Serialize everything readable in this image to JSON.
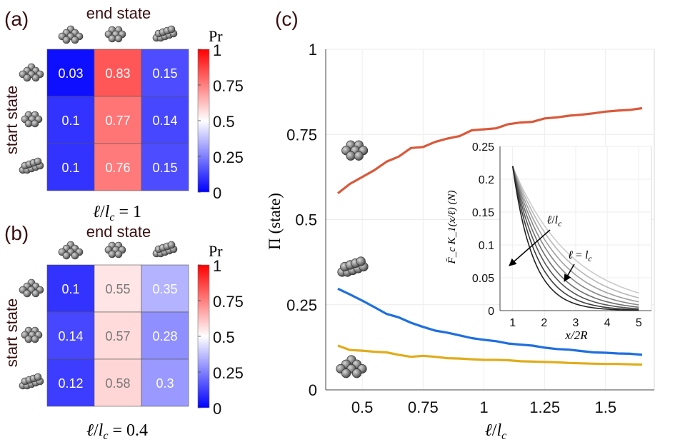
{
  "panels": {
    "a": {
      "label": "(a)",
      "title": "end state",
      "ylabel": "start state",
      "colorbar_label": "Pr",
      "colorbar_ticks": [
        "1",
        "0.75",
        "0.5",
        "0.25",
        "0"
      ],
      "caption": "ℓ/l_c = 1",
      "caption_parts": {
        "ell": "ℓ",
        "slash": "/",
        "l": "l",
        "sub": "c",
        "eq": " = ",
        "val": "1"
      }
    },
    "b": {
      "label": "(b)",
      "title": "end state",
      "ylabel": "start state",
      "colorbar_label": "Pr",
      "colorbar_ticks": [
        "1",
        "0.75",
        "0.5",
        "0.25",
        "0"
      ],
      "caption": "ℓ/l_c = 0.4",
      "caption_parts": {
        "ell": "ℓ",
        "slash": "/",
        "l": "l",
        "sub": "c",
        "eq": " = ",
        "val": "0.4"
      }
    },
    "c": {
      "label": "(c)"
    }
  },
  "icons": [
    "compact-cluster-icon",
    "branched-cluster-icon",
    "linear-chain-icon"
  ],
  "colors": {
    "red": "#ff0000",
    "white": "#ffffff",
    "blue": "#0000ff",
    "series_orange": "#d95a3b",
    "series_blue": "#1f6fdf",
    "series_yellow": "#e0ac1a"
  },
  "chart_data": [
    {
      "type": "heatmap",
      "panel": "a",
      "title": "end state",
      "ylabel": "start state",
      "xlabel": "ℓ/l_c = 1",
      "colorbar": {
        "label": "Pr",
        "range": [
          0,
          1
        ]
      },
      "rows": [
        "compact",
        "branched",
        "chain"
      ],
      "cols": [
        "compact",
        "branched",
        "chain"
      ],
      "values": [
        [
          0.03,
          0.83,
          0.15
        ],
        [
          0.1,
          0.77,
          0.14
        ],
        [
          0.1,
          0.76,
          0.15
        ]
      ],
      "labels": [
        [
          "0.03",
          "0.83",
          "0.15"
        ],
        [
          "0.1",
          "0.77",
          "0.14"
        ],
        [
          "0.1",
          "0.76",
          "0.15"
        ]
      ]
    },
    {
      "type": "heatmap",
      "panel": "b",
      "title": "end state",
      "ylabel": "start state",
      "xlabel": "ℓ/l_c = 0.4",
      "colorbar": {
        "label": "Pr",
        "range": [
          0,
          1
        ]
      },
      "rows": [
        "compact",
        "branched",
        "chain"
      ],
      "cols": [
        "compact",
        "branched",
        "chain"
      ],
      "values": [
        [
          0.1,
          0.55,
          0.35
        ],
        [
          0.14,
          0.57,
          0.28
        ],
        [
          0.12,
          0.58,
          0.3
        ]
      ],
      "labels": [
        [
          "0.1",
          "0.55",
          "0.35"
        ],
        [
          "0.14",
          "0.57",
          "0.28"
        ],
        [
          "0.12",
          "0.58",
          "0.3"
        ]
      ]
    },
    {
      "type": "line",
      "panel": "c",
      "xlabel": "ℓ/l_c",
      "ylabel": "Π (state)",
      "xlim": [
        0.35,
        1.7
      ],
      "ylim": [
        0,
        1
      ],
      "xticks": [
        0.5,
        0.75,
        1,
        1.25,
        1.5
      ],
      "xtick_labels": [
        "0.5",
        "0.75",
        "1",
        "1.25",
        "1.5"
      ],
      "yticks": [
        0,
        0.25,
        0.5,
        0.75,
        1
      ],
      "ytick_labels": [
        "0",
        "0.25",
        "0.5",
        "0.75",
        "1"
      ],
      "grid": true,
      "x": [
        0.4,
        0.45,
        0.5,
        0.55,
        0.6,
        0.65,
        0.7,
        0.75,
        0.8,
        0.85,
        0.9,
        0.95,
        1.0,
        1.05,
        1.1,
        1.15,
        1.2,
        1.25,
        1.3,
        1.35,
        1.4,
        1.45,
        1.5,
        1.55,
        1.6,
        1.65
      ],
      "series": [
        {
          "name": "branched",
          "color": "#d95a3b",
          "values": [
            0.577,
            0.605,
            0.625,
            0.645,
            0.67,
            0.685,
            0.71,
            0.713,
            0.728,
            0.738,
            0.745,
            0.762,
            0.765,
            0.768,
            0.78,
            0.785,
            0.787,
            0.797,
            0.8,
            0.805,
            0.808,
            0.812,
            0.817,
            0.82,
            0.822,
            0.827
          ]
        },
        {
          "name": "chain",
          "color": "#1f6fdf",
          "values": [
            0.297,
            0.28,
            0.262,
            0.243,
            0.223,
            0.213,
            0.197,
            0.185,
            0.174,
            0.168,
            0.16,
            0.152,
            0.147,
            0.143,
            0.136,
            0.133,
            0.13,
            0.124,
            0.12,
            0.118,
            0.114,
            0.11,
            0.109,
            0.107,
            0.106,
            0.103
          ]
        },
        {
          "name": "compact",
          "color": "#e0ac1a",
          "values": [
            0.13,
            0.117,
            0.115,
            0.112,
            0.11,
            0.103,
            0.097,
            0.1,
            0.097,
            0.093,
            0.092,
            0.09,
            0.088,
            0.088,
            0.087,
            0.084,
            0.083,
            0.082,
            0.081,
            0.079,
            0.078,
            0.077,
            0.076,
            0.076,
            0.075,
            0.074
          ]
        }
      ]
    },
    {
      "type": "line",
      "panel": "c-inset",
      "xlabel": "x/2R",
      "ylabel": "F̄_c K_1(x/ℓ) (N)",
      "xlim": [
        0.6,
        5.4
      ],
      "ylim": [
        0,
        0.25
      ],
      "xticks": [
        1,
        2,
        3,
        4,
        5
      ],
      "xtick_labels": [
        "1",
        "2",
        "3",
        "4",
        "5"
      ],
      "yticks": [
        0,
        0.05,
        0.1,
        0.15,
        0.2,
        0.25
      ],
      "ytick_labels": [
        "0",
        "0.05",
        "0.1",
        "0.15",
        "0.2",
        "0.25"
      ],
      "annotations": [
        "ℓ/l_c",
        "ℓ = l_c"
      ],
      "annotation_parts": {
        "ratio": {
          "ell": "ℓ",
          "slash": "/",
          "l": "l",
          "sub": "c"
        },
        "equal": {
          "ell": "ℓ",
          "eq": " = ",
          "l": "l",
          "sub": "c"
        }
      },
      "curves_decay_length": [
        0.65,
        0.78,
        0.92,
        1.07,
        1.24,
        1.43,
        1.65,
        1.9
      ],
      "x_start": 1,
      "x_end": 5,
      "y_start": 0.22,
      "series_colors": [
        "#222222",
        "#3c3c3c",
        "#555555",
        "#6e6e6e",
        "#878787",
        "#a0a0a0",
        "#b7b7b7",
        "#cccccc"
      ]
    }
  ]
}
